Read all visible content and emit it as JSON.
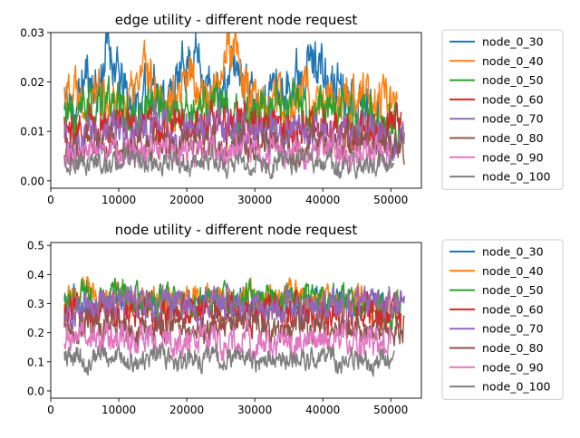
{
  "chart_data": [
    {
      "type": "line",
      "title": "edge utility - different node request",
      "xlabel": "",
      "ylabel": "",
      "xlim": [
        0,
        54500
      ],
      "ylim": [
        -0.0015,
        0.03
      ],
      "xticks": [
        0,
        10000,
        20000,
        30000,
        40000,
        50000
      ],
      "xtick_labels": [
        "0",
        "10000",
        "20000",
        "30000",
        "40000",
        "50000"
      ],
      "yticks": [
        0.0,
        0.01,
        0.02,
        0.03
      ],
      "ytick_labels": [
        "0.00",
        "0.01",
        "0.02",
        "0.03"
      ],
      "legend": "outside-right",
      "series": [
        {
          "name": "node_0_30",
          "color": "#1f77b4",
          "x_start": 2000,
          "x_end": 49000,
          "anchors": [
            0.016,
            0.014,
            0.022,
            0.018,
            0.028,
            0.02,
            0.016,
            0.015,
            0.021,
            0.016,
            0.018,
            0.024,
            0.026,
            0.019,
            0.016,
            0.022,
            0.024,
            0.017,
            0.015,
            0.02,
            0.017,
            0.022,
            0.024,
            0.025,
            0.018,
            0.021,
            0.017,
            0.016,
            0.014,
            0.013
          ],
          "noise": 0.004,
          "seed": 11
        },
        {
          "name": "node_0_40",
          "color": "#ff7f0e",
          "x_start": 2000,
          "x_end": 51000,
          "anchors": [
            0.018,
            0.02,
            0.017,
            0.019,
            0.016,
            0.015,
            0.017,
            0.023,
            0.02,
            0.016,
            0.015,
            0.022,
            0.018,
            0.016,
            0.027,
            0.025,
            0.017,
            0.015,
            0.016,
            0.014,
            0.015,
            0.019,
            0.017,
            0.016,
            0.014,
            0.016,
            0.018,
            0.015,
            0.017,
            0.016
          ],
          "noise": 0.004,
          "seed": 22
        },
        {
          "name": "node_0_50",
          "color": "#2ca02c",
          "x_start": 2000,
          "x_end": 51500,
          "anchors": [
            0.014,
            0.012,
            0.015,
            0.013,
            0.016,
            0.014,
            0.012,
            0.015,
            0.016,
            0.014,
            0.013,
            0.015,
            0.014,
            0.016,
            0.013,
            0.012,
            0.014,
            0.015,
            0.013,
            0.014,
            0.016,
            0.012,
            0.014,
            0.015,
            0.013,
            0.011,
            0.013,
            0.012,
            0.011,
            0.012
          ],
          "noise": 0.0035,
          "seed": 33
        },
        {
          "name": "node_0_60",
          "color": "#d62728",
          "x_start": 2000,
          "x_end": 51500,
          "anchors": [
            0.011,
            0.009,
            0.012,
            0.01,
            0.011,
            0.013,
            0.01,
            0.012,
            0.011,
            0.01,
            0.012,
            0.011,
            0.01,
            0.012,
            0.011,
            0.013,
            0.01,
            0.011,
            0.012,
            0.01,
            0.011,
            0.01,
            0.012,
            0.011,
            0.01,
            0.009,
            0.011,
            0.01,
            0.011,
            0.012
          ],
          "noise": 0.003,
          "seed": 44
        },
        {
          "name": "node_0_70",
          "color": "#9467bd",
          "x_start": 2000,
          "x_end": 52000,
          "anchors": [
            0.009,
            0.008,
            0.01,
            0.009,
            0.011,
            0.01,
            0.009,
            0.011,
            0.012,
            0.01,
            0.009,
            0.011,
            0.01,
            0.012,
            0.011,
            0.01,
            0.009,
            0.011,
            0.01,
            0.009,
            0.011,
            0.01,
            0.009,
            0.01,
            0.011,
            0.009,
            0.01,
            0.009,
            0.008,
            0.009
          ],
          "noise": 0.003,
          "seed": 55
        },
        {
          "name": "node_0_80",
          "color": "#8c564b",
          "x_start": 2000,
          "x_end": 52000,
          "anchors": [
            0.007,
            0.006,
            0.008,
            0.007,
            0.009,
            0.007,
            0.008,
            0.006,
            0.008,
            0.007,
            0.009,
            0.008,
            0.007,
            0.008,
            0.006,
            0.008,
            0.007,
            0.009,
            0.007,
            0.008,
            0.006,
            0.007,
            0.008,
            0.006,
            0.007,
            0.008,
            0.006,
            0.007,
            0.008,
            0.007
          ],
          "noise": 0.0025,
          "seed": 66
        },
        {
          "name": "node_0_90",
          "color": "#e377c2",
          "x_start": 2000,
          "x_end": 50000,
          "anchors": [
            0.005,
            0.006,
            0.007,
            0.006,
            0.008,
            0.006,
            0.007,
            0.005,
            0.006,
            0.007,
            0.006,
            0.005,
            0.007,
            0.006,
            0.005,
            0.006,
            0.007,
            0.005,
            0.006,
            0.007,
            0.005,
            0.006,
            0.005,
            0.006,
            0.007,
            0.005,
            0.006,
            0.005,
            0.006,
            0.005
          ],
          "noise": 0.0022,
          "seed": 77
        },
        {
          "name": "node_0_100",
          "color": "#7f7f7f",
          "x_start": 2000,
          "x_end": 50500,
          "anchors": [
            0.003,
            0.004,
            0.003,
            0.004,
            0.003,
            0.004,
            0.005,
            0.003,
            0.004,
            0.003,
            0.004,
            0.003,
            0.004,
            0.005,
            0.003,
            0.004,
            0.003,
            0.004,
            0.003,
            0.004,
            0.003,
            0.005,
            0.003,
            0.004,
            0.003,
            0.004,
            0.003,
            0.003,
            0.004,
            0.003
          ],
          "noise": 0.0018,
          "seed": 88
        }
      ]
    },
    {
      "type": "line",
      "title": "node utility - different node request",
      "xlabel": "",
      "ylabel": "",
      "xlim": [
        0,
        54500
      ],
      "ylim": [
        -0.025,
        0.51
      ],
      "xticks": [
        0,
        10000,
        20000,
        30000,
        40000,
        50000
      ],
      "xtick_labels": [
        "0",
        "10000",
        "20000",
        "30000",
        "40000",
        "50000"
      ],
      "yticks": [
        0.0,
        0.1,
        0.2,
        0.3,
        0.4,
        0.5
      ],
      "ytick_labels": [
        "0.0",
        "0.1",
        "0.2",
        "0.3",
        "0.4",
        "0.5"
      ],
      "legend": "outside-right",
      "series": [
        {
          "name": "node_0_30",
          "color": "#1f77b4",
          "x_start": 2000,
          "x_end": 49000,
          "anchors": [
            0.3,
            0.32,
            0.29,
            0.31,
            0.3,
            0.33,
            0.3,
            0.31,
            0.29,
            0.32,
            0.3,
            0.31,
            0.3,
            0.29,
            0.31,
            0.3,
            0.32,
            0.3,
            0.31,
            0.29,
            0.3,
            0.31,
            0.3,
            0.32,
            0.3,
            0.29,
            0.31,
            0.3,
            0.31,
            0.3
          ],
          "noise": 0.035,
          "seed": 12
        },
        {
          "name": "node_0_40",
          "color": "#ff7f0e",
          "x_start": 2000,
          "x_end": 51000,
          "anchors": [
            0.33,
            0.31,
            0.34,
            0.32,
            0.3,
            0.33,
            0.31,
            0.32,
            0.3,
            0.33,
            0.31,
            0.32,
            0.3,
            0.34,
            0.32,
            0.31,
            0.33,
            0.3,
            0.32,
            0.31,
            0.33,
            0.3,
            0.32,
            0.31,
            0.3,
            0.32,
            0.31,
            0.3,
            0.29,
            0.31
          ],
          "noise": 0.04,
          "seed": 23
        },
        {
          "name": "node_0_50",
          "color": "#2ca02c",
          "x_start": 2000,
          "x_end": 51500,
          "anchors": [
            0.3,
            0.33,
            0.31,
            0.29,
            0.34,
            0.32,
            0.3,
            0.33,
            0.31,
            0.32,
            0.3,
            0.31,
            0.33,
            0.3,
            0.32,
            0.29,
            0.31,
            0.3,
            0.32,
            0.3,
            0.31,
            0.33,
            0.29,
            0.3,
            0.31,
            0.29,
            0.28,
            0.3,
            0.29,
            0.3
          ],
          "noise": 0.045,
          "seed": 34
        },
        {
          "name": "node_0_60",
          "color": "#d62728",
          "x_start": 2000,
          "x_end": 51500,
          "anchors": [
            0.26,
            0.28,
            0.25,
            0.29,
            0.27,
            0.26,
            0.28,
            0.27,
            0.25,
            0.28,
            0.26,
            0.29,
            0.27,
            0.26,
            0.28,
            0.27,
            0.25,
            0.28,
            0.27,
            0.26,
            0.28,
            0.27,
            0.25,
            0.27,
            0.26,
            0.25,
            0.27,
            0.26,
            0.25,
            0.26
          ],
          "noise": 0.045,
          "seed": 45
        },
        {
          "name": "node_0_70",
          "color": "#9467bd",
          "x_start": 2000,
          "x_end": 52000,
          "anchors": [
            0.25,
            0.27,
            0.29,
            0.28,
            0.3,
            0.29,
            0.31,
            0.3,
            0.29,
            0.32,
            0.3,
            0.28,
            0.29,
            0.31,
            0.3,
            0.28,
            0.29,
            0.3,
            0.29,
            0.31,
            0.28,
            0.3,
            0.29,
            0.3,
            0.28,
            0.29,
            0.31,
            0.3,
            0.31,
            0.3
          ],
          "noise": 0.045,
          "seed": 56
        },
        {
          "name": "node_0_80",
          "color": "#8c564b",
          "x_start": 2000,
          "x_end": 52000,
          "anchors": [
            0.22,
            0.2,
            0.23,
            0.21,
            0.24,
            0.22,
            0.2,
            0.23,
            0.22,
            0.21,
            0.23,
            0.22,
            0.2,
            0.23,
            0.21,
            0.22,
            0.24,
            0.21,
            0.22,
            0.2,
            0.23,
            0.21,
            0.22,
            0.2,
            0.22,
            0.21,
            0.2,
            0.22,
            0.21,
            0.22
          ],
          "noise": 0.04,
          "seed": 67
        },
        {
          "name": "node_0_90",
          "color": "#e377c2",
          "x_start": 2000,
          "x_end": 50000,
          "anchors": [
            0.16,
            0.18,
            0.2,
            0.17,
            0.19,
            0.18,
            0.16,
            0.19,
            0.17,
            0.18,
            0.16,
            0.19,
            0.17,
            0.18,
            0.16,
            0.17,
            0.19,
            0.16,
            0.18,
            0.17,
            0.16,
            0.18,
            0.17,
            0.16,
            0.18,
            0.17,
            0.16,
            0.17,
            0.16,
            0.17
          ],
          "noise": 0.04,
          "seed": 78
        },
        {
          "name": "node_0_100",
          "color": "#7f7f7f",
          "x_start": 2000,
          "x_end": 50500,
          "anchors": [
            0.11,
            0.12,
            0.1,
            0.13,
            0.11,
            0.12,
            0.1,
            0.11,
            0.13,
            0.11,
            0.1,
            0.12,
            0.11,
            0.13,
            0.1,
            0.12,
            0.11,
            0.1,
            0.12,
            0.11,
            0.13,
            0.1,
            0.11,
            0.12,
            0.1,
            0.11,
            0.12,
            0.1,
            0.11,
            0.1
          ],
          "noise": 0.03,
          "seed": 89
        }
      ]
    }
  ]
}
